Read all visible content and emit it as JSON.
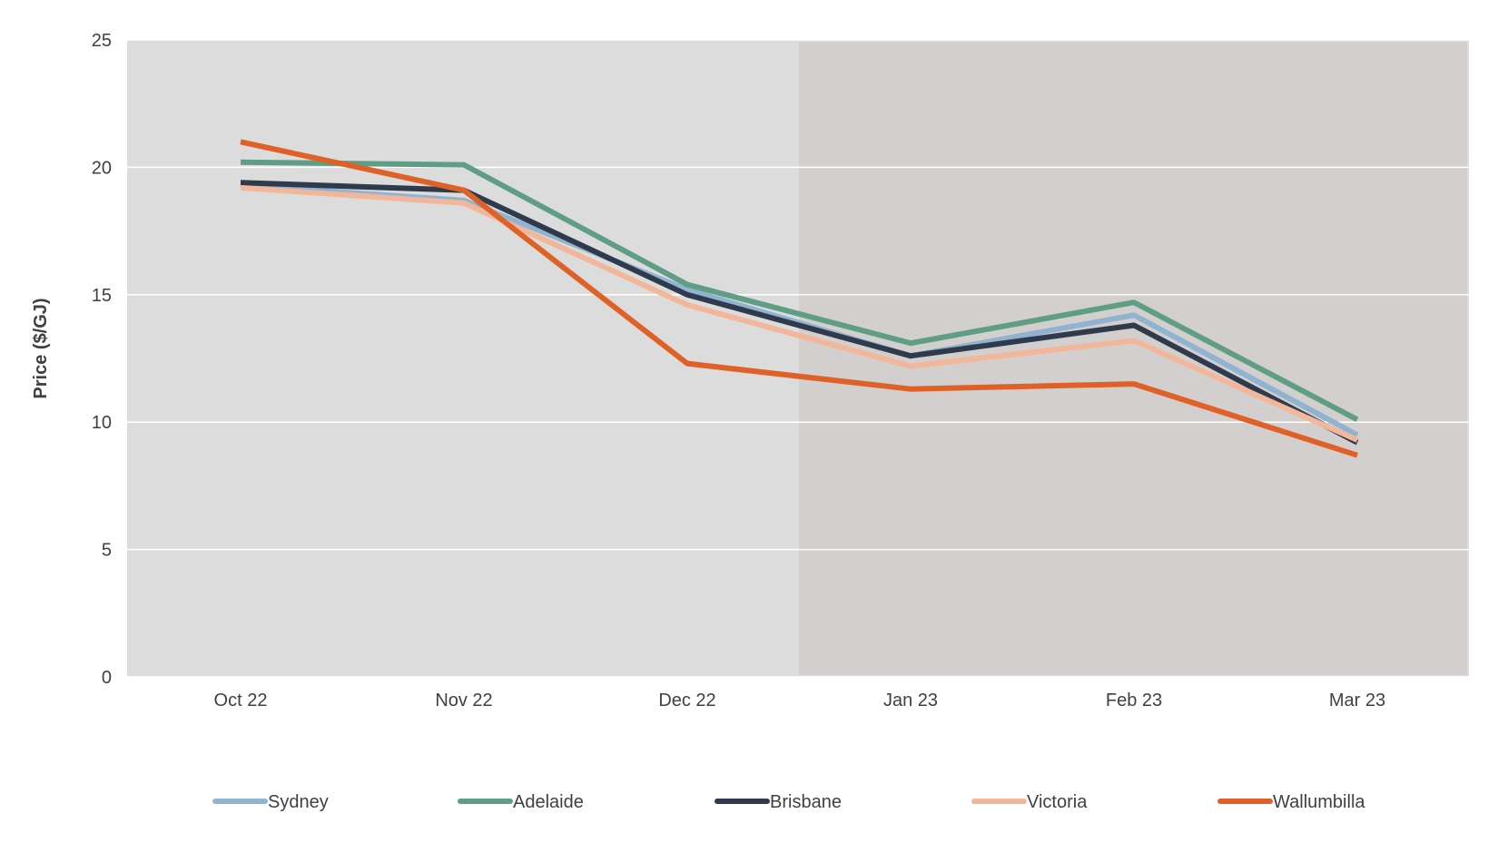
{
  "chart_data": {
    "type": "line",
    "title": "",
    "xlabel": "",
    "ylabel": "Price ($/GJ)",
    "ylim": [
      0,
      25
    ],
    "yticks": [
      0,
      5,
      10,
      15,
      20,
      25
    ],
    "grid": true,
    "categories": [
      "Oct 22",
      "Nov 22",
      "Dec 22",
      "Jan 23",
      "Feb 23",
      "Mar 23"
    ],
    "shaded_region": {
      "from": "Dec 22",
      "to": "Mar 23",
      "description": "forecast period (darker background)"
    },
    "legend_position": "bottom",
    "series": [
      {
        "name": "Sydney",
        "color": "#8fb3d0",
        "values": [
          19.3,
          18.7,
          15.2,
          12.6,
          14.2,
          9.5
        ]
      },
      {
        "name": "Adelaide",
        "color": "#5f9e84",
        "values": [
          20.2,
          20.1,
          15.4,
          13.1,
          14.7,
          10.1
        ]
      },
      {
        "name": "Brisbane",
        "color": "#2f3b4c",
        "values": [
          19.4,
          19.1,
          15.0,
          12.6,
          13.8,
          9.2
        ]
      },
      {
        "name": "Victoria",
        "color": "#f2b79a",
        "values": [
          19.2,
          18.6,
          14.6,
          12.2,
          13.2,
          9.3
        ]
      },
      {
        "name": "Wallumbilla",
        "color": "#df6128",
        "values": [
          21.0,
          19.1,
          12.3,
          11.3,
          11.5,
          8.7
        ]
      }
    ]
  }
}
